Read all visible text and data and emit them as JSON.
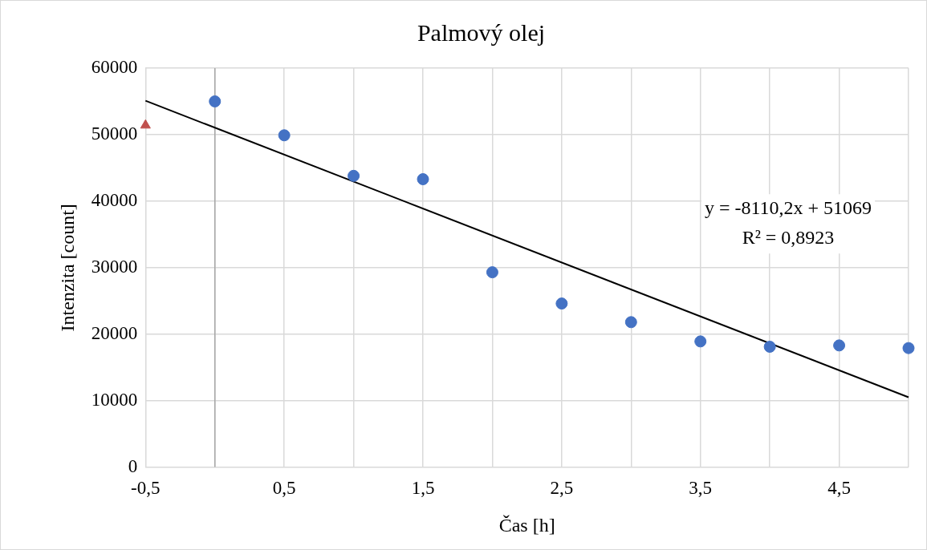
{
  "chart_data": {
    "type": "scatter",
    "title": "Palmový olej",
    "xlabel": "Čas [h]",
    "ylabel": "Intenzita [count]",
    "xlim": [
      -0.5,
      5
    ],
    "ylim": [
      0,
      60000
    ],
    "xticks": [
      {
        "value": -0.5,
        "label": "-0,5"
      },
      {
        "value": 0,
        "label": null
      },
      {
        "value": 0.5,
        "label": "0,5"
      },
      {
        "value": 1,
        "label": null
      },
      {
        "value": 1.5,
        "label": "1,5"
      },
      {
        "value": 2,
        "label": null
      },
      {
        "value": 2.5,
        "label": "2,5"
      },
      {
        "value": 3,
        "label": null
      },
      {
        "value": 3.5,
        "label": "3,5"
      },
      {
        "value": 4,
        "label": null
      },
      {
        "value": 4.5,
        "label": "4,5"
      },
      {
        "value": 5,
        "label": null
      }
    ],
    "yticks": [
      0,
      10000,
      20000,
      30000,
      40000,
      50000,
      60000
    ],
    "grid": true,
    "ref_lines": [
      {
        "axis": "x",
        "value": 0,
        "color": "#a6a6a6"
      }
    ],
    "series": [
      {
        "type": "scatter",
        "marker": "circle",
        "color": "#4472c4",
        "x": [
          0,
          0.5,
          1,
          1.5,
          2,
          2.5,
          3,
          3.5,
          4,
          4.5,
          5
        ],
        "values": [
          55000,
          49900,
          43800,
          43300,
          29300,
          24600,
          21800,
          18900,
          18100,
          18300,
          17900
        ]
      },
      {
        "type": "scatter",
        "marker": "triangle",
        "color": "#c0504d",
        "x": [
          -0.5
        ],
        "values": [
          51400
        ]
      },
      {
        "type": "line",
        "marker": "none",
        "line_style": "solid",
        "color": "#000000",
        "x": [
          -0.5,
          5
        ],
        "values": [
          55100,
          10500
        ]
      }
    ],
    "annotations": [
      "y = -8110,2x + 51069",
      "R² = 0,8923"
    ]
  }
}
